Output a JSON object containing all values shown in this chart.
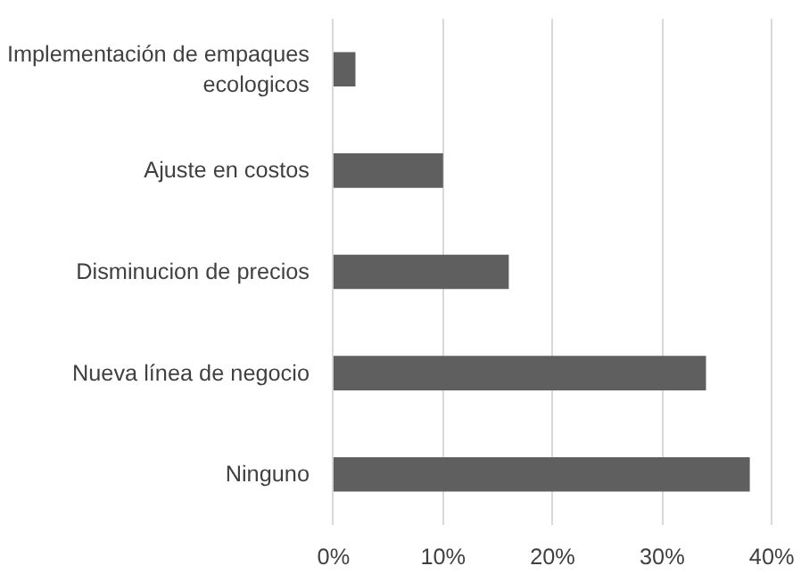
{
  "chart_data": {
    "type": "bar",
    "orientation": "horizontal",
    "categories": [
      "Implementación de empaques ecologicos",
      "Ajuste en costos",
      "Disminucion de precios",
      "Nueva línea de negocio",
      "Ninguno"
    ],
    "values": [
      2,
      10,
      16,
      34,
      38
    ],
    "color": "#5f5f5f",
    "xlim": [
      0,
      40
    ],
    "xticks": [
      {
        "value": 0,
        "label": "0%"
      },
      {
        "value": 10,
        "label": "10%"
      },
      {
        "value": 20,
        "label": "20%"
      },
      {
        "value": 30,
        "label": "30%"
      },
      {
        "value": 40,
        "label": "40%"
      }
    ],
    "grid": "x"
  }
}
